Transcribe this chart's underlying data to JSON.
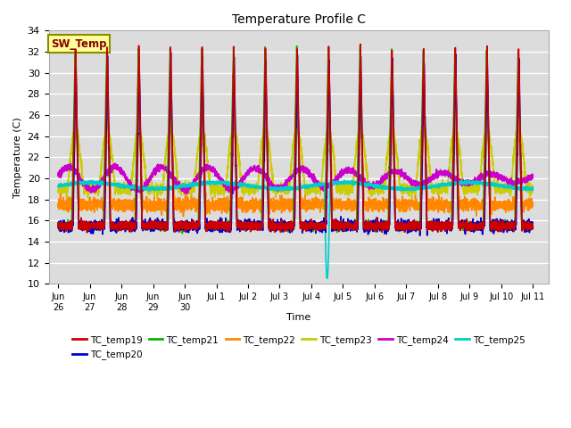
{
  "title": "Temperature Profile C",
  "ylabel": "Temperature (C)",
  "xlabel": "Time",
  "ylim": [
    10,
    34
  ],
  "yticks": [
    10,
    12,
    14,
    16,
    18,
    20,
    22,
    24,
    26,
    28,
    30,
    32,
    34
  ],
  "bg_color": "#dcdcdc",
  "grid_color": "white",
  "series": {
    "TC_temp19": {
      "color": "#cc0000",
      "lw": 1.2
    },
    "TC_temp20": {
      "color": "#0000cc",
      "lw": 1.2
    },
    "TC_temp21": {
      "color": "#00bb00",
      "lw": 1.2
    },
    "TC_temp22": {
      "color": "#ff8800",
      "lw": 1.2
    },
    "TC_temp23": {
      "color": "#cccc00",
      "lw": 1.2
    },
    "TC_temp24": {
      "color": "#cc00cc",
      "lw": 1.2
    },
    "TC_temp25": {
      "color": "#00cccc",
      "lw": 1.2
    }
  },
  "sw_temp_box": {
    "text": "SW_Temp",
    "text_color": "#8B0000",
    "bg_color": "#ffff99",
    "edge_color": "#8B8B00"
  },
  "xtick_labels": [
    "Jun\n26",
    "Jun\n27",
    "Jun\n28",
    "Jun\n29",
    "Jun\n30",
    "Jul 1",
    "Jul 2",
    "Jul 3",
    "Jul 4",
    "Jul 5",
    "Jul 6",
    "Jul 7",
    "Jul 8",
    "Jul 9",
    "Jul 10",
    "Jul 11"
  ],
  "xtick_positions": [
    0,
    1,
    2,
    3,
    4,
    5,
    6,
    7,
    8,
    9,
    10,
    11,
    12,
    13,
    14,
    15
  ]
}
